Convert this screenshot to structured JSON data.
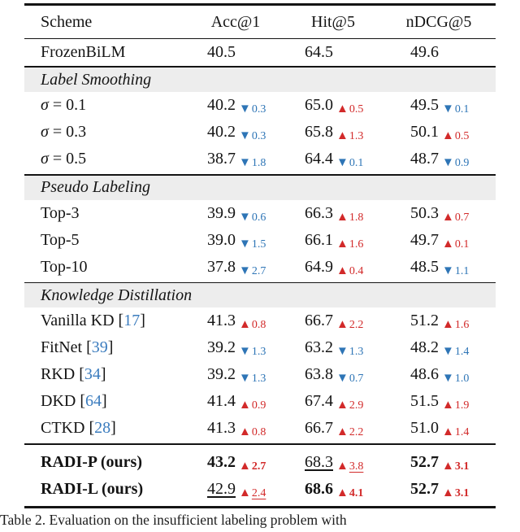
{
  "caption": "Table 2.  Evaluation on the insufficient labeling problem with",
  "colors": {
    "up_red": "#d22a2a",
    "down_blue": "#2e75b6",
    "cite_blue": "#3b7cbe",
    "band_gray": "#ededed"
  },
  "table": {
    "columns": [
      "Scheme",
      "Acc@1",
      "Hit@5",
      "nDCG@5"
    ],
    "baseline_row": {
      "scheme": {
        "label": "FrozenBiLM"
      },
      "cells": [
        {
          "value": "40.5"
        },
        {
          "value": "64.5"
        },
        {
          "value": "49.6"
        }
      ]
    },
    "sections": [
      {
        "title": "Label Smoothing",
        "rows": [
          {
            "scheme": {
              "label": "σ = 0.1"
            },
            "cells": [
              {
                "value": "40.2",
                "dir": "down",
                "delta": "0.3"
              },
              {
                "value": "65.0",
                "dir": "up",
                "delta": "0.5"
              },
              {
                "value": "49.5",
                "dir": "down",
                "delta": "0.1"
              }
            ]
          },
          {
            "scheme": {
              "label": "σ = 0.3"
            },
            "cells": [
              {
                "value": "40.2",
                "dir": "down",
                "delta": "0.3"
              },
              {
                "value": "65.8",
                "dir": "up",
                "delta": "1.3"
              },
              {
                "value": "50.1",
                "dir": "up",
                "delta": "0.5"
              }
            ]
          },
          {
            "scheme": {
              "label": "σ = 0.5"
            },
            "cells": [
              {
                "value": "38.7",
                "dir": "down",
                "delta": "1.8"
              },
              {
                "value": "64.4",
                "dir": "down",
                "delta": "0.1"
              },
              {
                "value": "48.7",
                "dir": "down",
                "delta": "0.9"
              }
            ]
          }
        ]
      },
      {
        "title": "Pseudo Labeling",
        "rows": [
          {
            "scheme": {
              "label": "Top-3"
            },
            "cells": [
              {
                "value": "39.9",
                "dir": "down",
                "delta": "0.6"
              },
              {
                "value": "66.3",
                "dir": "up",
                "delta": "1.8"
              },
              {
                "value": "50.3",
                "dir": "up",
                "delta": "0.7"
              }
            ]
          },
          {
            "scheme": {
              "label": "Top-5"
            },
            "cells": [
              {
                "value": "39.0",
                "dir": "down",
                "delta": "1.5"
              },
              {
                "value": "66.1",
                "dir": "up",
                "delta": "1.6"
              },
              {
                "value": "49.7",
                "dir": "up",
                "delta": "0.1"
              }
            ]
          },
          {
            "scheme": {
              "label": "Top-10"
            },
            "cells": [
              {
                "value": "37.8",
                "dir": "down",
                "delta": "2.7"
              },
              {
                "value": "64.9",
                "dir": "up",
                "delta": "0.4"
              },
              {
                "value": "48.5",
                "dir": "down",
                "delta": "1.1"
              }
            ]
          }
        ]
      },
      {
        "title": "Knowledge Distillation",
        "rows": [
          {
            "scheme": {
              "label": "Vanilla KD",
              "cite": "17"
            },
            "cells": [
              {
                "value": "41.3",
                "dir": "up",
                "delta": "0.8"
              },
              {
                "value": "66.7",
                "dir": "up",
                "delta": "2.2"
              },
              {
                "value": "51.2",
                "dir": "up",
                "delta": "1.6"
              }
            ]
          },
          {
            "scheme": {
              "label": "FitNet",
              "cite": "39"
            },
            "cells": [
              {
                "value": "39.2",
                "dir": "down",
                "delta": "1.3"
              },
              {
                "value": "63.2",
                "dir": "down",
                "delta": "1.3"
              },
              {
                "value": "48.2",
                "dir": "down",
                "delta": "1.4"
              }
            ]
          },
          {
            "scheme": {
              "label": "RKD",
              "cite": "34"
            },
            "cells": [
              {
                "value": "39.2",
                "dir": "down",
                "delta": "1.3"
              },
              {
                "value": "63.8",
                "dir": "down",
                "delta": "0.7"
              },
              {
                "value": "48.6",
                "dir": "down",
                "delta": "1.0"
              }
            ]
          },
          {
            "scheme": {
              "label": "DKD",
              "cite": "64"
            },
            "cells": [
              {
                "value": "41.4",
                "dir": "up",
                "delta": "0.9"
              },
              {
                "value": "67.4",
                "dir": "up",
                "delta": "2.9"
              },
              {
                "value": "51.5",
                "dir": "up",
                "delta": "1.9"
              }
            ]
          },
          {
            "scheme": {
              "label": "CTKD",
              "cite": "28"
            },
            "cells": [
              {
                "value": "41.3",
                "dir": "up",
                "delta": "0.8"
              },
              {
                "value": "66.7",
                "dir": "up",
                "delta": "2.2"
              },
              {
                "value": "51.0",
                "dir": "up",
                "delta": "1.4"
              }
            ]
          }
        ]
      }
    ],
    "final_rows": [
      {
        "scheme": {
          "label": "RADI-P (ours)",
          "bold": true
        },
        "cells": [
          {
            "value": "43.2",
            "dir": "up",
            "delta": "2.7",
            "value_style": "bold",
            "delta_style": "bold"
          },
          {
            "value": "68.3",
            "dir": "up",
            "delta": "3.8",
            "value_style": "underline",
            "delta_style": "underline"
          },
          {
            "value": "52.7",
            "dir": "up",
            "delta": "3.1",
            "value_style": "bold",
            "delta_style": "bold"
          }
        ]
      },
      {
        "scheme": {
          "label": "RADI-L (ours)",
          "bold": true
        },
        "cells": [
          {
            "value": "42.9",
            "dir": "up",
            "delta": "2.4",
            "value_style": "underline",
            "delta_style": "underline"
          },
          {
            "value": "68.6",
            "dir": "up",
            "delta": "4.1",
            "value_style": "bold",
            "delta_style": "bold"
          },
          {
            "value": "52.7",
            "dir": "up",
            "delta": "3.1",
            "value_style": "bold",
            "delta_style": "bold"
          }
        ]
      }
    ]
  }
}
